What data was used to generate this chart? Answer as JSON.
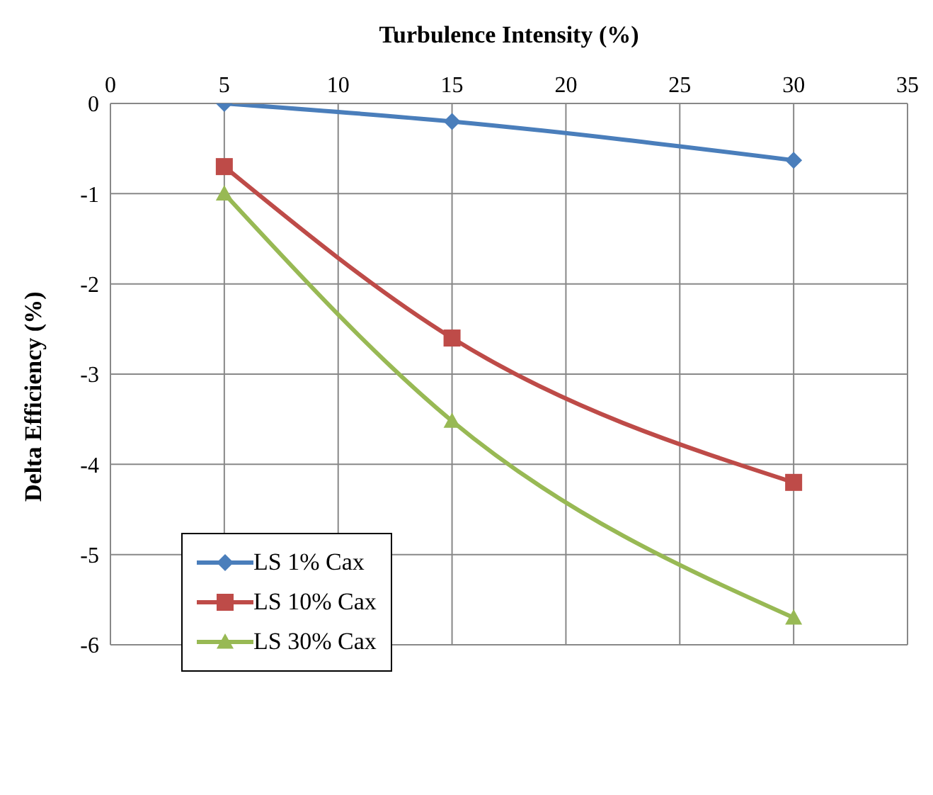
{
  "chart_data": {
    "type": "line",
    "xlabel": "Turbulence Intensity (%)",
    "ylabel": "Delta Efficiency (%)",
    "xlim": [
      0,
      35
    ],
    "xticks": [
      0,
      5,
      10,
      15,
      20,
      25,
      30,
      35
    ],
    "ylim": [
      -6,
      0
    ],
    "yticks": [
      -6,
      -5,
      -4,
      -3,
      -2,
      -1,
      0
    ],
    "grid": true,
    "legend": "bottom left",
    "series": [
      {
        "name": "LS 1% Cax",
        "color": "#4a7ebb",
        "marker": "diamond",
        "x": [
          5,
          15,
          30
        ],
        "values": [
          0,
          -0.2,
          -0.63
        ]
      },
      {
        "name": "LS 10% Cax",
        "color": "#be4b48",
        "marker": "square",
        "x": [
          5,
          15,
          30
        ],
        "values": [
          -0.7,
          -2.6,
          -4.2
        ]
      },
      {
        "name": "LS 30% Cax",
        "color": "#98b954",
        "marker": "triangle",
        "x": [
          5,
          15,
          30
        ],
        "values": [
          -1,
          -3.52,
          -5.7
        ]
      }
    ]
  }
}
